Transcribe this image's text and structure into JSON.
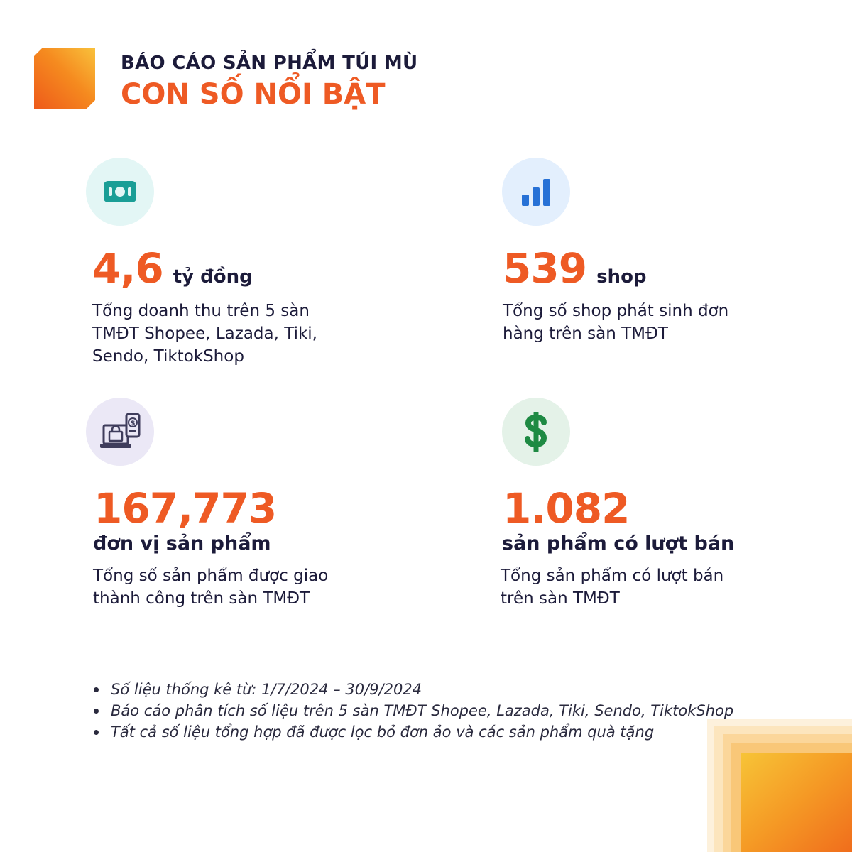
{
  "header": {
    "subtitle": "BÁO CÁO SẢN PHẨM TÚI MÙ",
    "title": "CON SỐ NỔI BẬT"
  },
  "stats": [
    {
      "icon": "money-icon",
      "value": "4,6",
      "unit": "tỷ đồng",
      "description": "Tổng doanh thu trên 5 sàn TMĐT Shopee, Lazada, Tiki, Sendo, TiktokShop",
      "icon_bg": "#e3f6f5",
      "icon_color": "#1a9e96"
    },
    {
      "icon": "bar-chart-icon",
      "value": "539",
      "unit": "shop",
      "description": "Tổng số shop phát sinh đơn hàng trên sàn TMĐT",
      "icon_bg": "#e3effd",
      "icon_color": "#2771d6"
    },
    {
      "icon": "ecommerce-laptop-icon",
      "value": "167,773",
      "unit": "đơn vị sản phẩm",
      "description": "Tổng số sản phẩm được giao thành công trên sàn TMĐT",
      "icon_bg": "#ebe8f6",
      "icon_color": "#3f3d5c"
    },
    {
      "icon": "dollar-icon",
      "value": "1.082",
      "unit": "sản phẩm có lượt bán",
      "description": "Tổng sản phẩm có lượt bán trên sàn TMĐT",
      "icon_bg": "#e4f2e8",
      "icon_color": "#1e8a43"
    }
  ],
  "notes": [
    "Số liệu thống kê từ: 1/7/2024 – 30/9/2024",
    "Báo cáo phân tích số liệu trên 5 sàn TMĐT Shopee, Lazada, Tiki, Sendo, TiktokShop",
    "Tất cả số liệu tổng hợp đã được lọc bỏ đơn ảo và các sản phẩm quà tặng"
  ],
  "colors": {
    "accent": "#ee5a24",
    "text": "#1c1b3a"
  }
}
